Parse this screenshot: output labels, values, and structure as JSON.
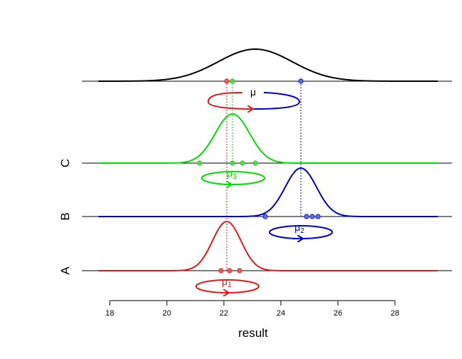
{
  "colors": {
    "A": "#e41a1c",
    "B": "#0000cc",
    "C": "#00e000",
    "mu": "#000000",
    "point_A": "#e06060",
    "point_B": "#6070e0",
    "point_C": "#60d060"
  },
  "chart_data": {
    "type": "density-diagram",
    "xlabel": "result",
    "xlim": [
      17.6,
      29.5
    ],
    "ticks": [
      18,
      20,
      22,
      24,
      26,
      28
    ],
    "tick_labels": [
      "18",
      "20",
      "22",
      "24",
      "26",
      "28"
    ],
    "overall": {
      "label": "μ",
      "mean": 23.1,
      "sd": 1.3,
      "points": [
        22.1,
        22.3,
        24.7
      ]
    },
    "groups": [
      {
        "key": "A",
        "label": "A",
        "mu_symbol": "μ",
        "mu_sub": "1",
        "mean": 22.1,
        "sd": 0.5,
        "points": [
          21.9,
          22.2,
          22.55
        ]
      },
      {
        "key": "B",
        "label": "B",
        "mu_symbol": "μ",
        "mu_sub": "2",
        "mean": 24.7,
        "sd": 0.55,
        "points": [
          23.45,
          24.9,
          25.1,
          25.3
        ]
      },
      {
        "key": "C",
        "label": "C",
        "mu_symbol": "μ",
        "mu_sub": "3",
        "mean": 22.3,
        "sd": 0.6,
        "points": [
          21.15,
          22.3,
          22.65,
          23.1
        ]
      }
    ]
  }
}
